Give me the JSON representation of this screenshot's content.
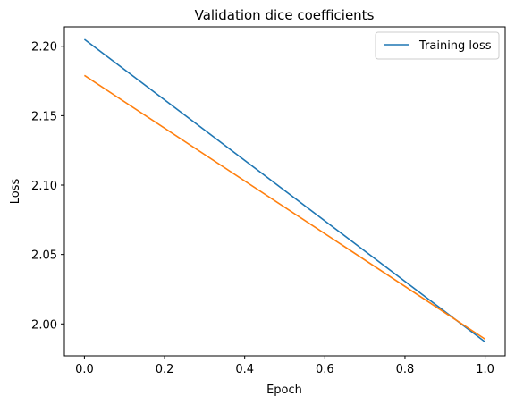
{
  "chart_data": {
    "type": "line",
    "title": "Validation dice coefficients",
    "xlabel": "Epoch",
    "ylabel": "Loss",
    "xlim": [
      -0.05,
      1.05
    ],
    "ylim": [
      1.977,
      2.214
    ],
    "grid": false,
    "legend_position": "top-right",
    "x_ticks": [
      {
        "value": 0.0,
        "label": "0.0"
      },
      {
        "value": 0.2,
        "label": "0.2"
      },
      {
        "value": 0.4,
        "label": "0.4"
      },
      {
        "value": 0.6,
        "label": "0.6"
      },
      {
        "value": 0.8,
        "label": "0.8"
      },
      {
        "value": 1.0,
        "label": "1.0"
      }
    ],
    "y_ticks": [
      {
        "value": 2.0,
        "label": "2.00"
      },
      {
        "value": 2.05,
        "label": "2.05"
      },
      {
        "value": 2.1,
        "label": "2.10"
      },
      {
        "value": 2.15,
        "label": "2.15"
      },
      {
        "value": 2.2,
        "label": "2.20"
      }
    ],
    "series": [
      {
        "name": "Training loss",
        "color": "#1f77b4",
        "x": [
          0,
          1
        ],
        "y": [
          2.205,
          1.987
        ]
      },
      {
        "color": "#ff7f0e",
        "x": [
          0,
          1
        ],
        "y": [
          2.179,
          1.989
        ]
      }
    ],
    "legend": [
      {
        "label": "Training loss",
        "color": "#1f77b4"
      }
    ]
  }
}
